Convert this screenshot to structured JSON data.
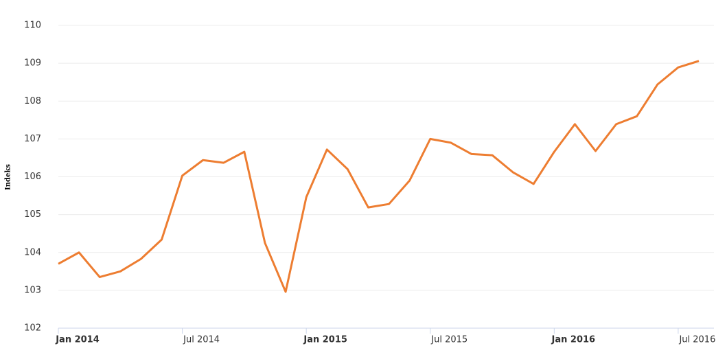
{
  "chart_data": {
    "type": "line",
    "y_label": "Indeks",
    "x": [
      "2014-01",
      "2014-02",
      "2014-03",
      "2014-04",
      "2014-05",
      "2014-06",
      "2014-07",
      "2014-08",
      "2014-09",
      "2014-10",
      "2014-11",
      "2014-12",
      "2015-01",
      "2015-02",
      "2015-03",
      "2015-04",
      "2015-05",
      "2015-06",
      "2015-07",
      "2015-08",
      "2015-09",
      "2015-10",
      "2015-11",
      "2015-12",
      "2016-01",
      "2016-02",
      "2016-03",
      "2016-04",
      "2016-05",
      "2016-06",
      "2016-07",
      "2016-08"
    ],
    "series": [
      {
        "name": "Indeks",
        "color": "#ed7d31",
        "values": [
          103.7,
          104.0,
          103.35,
          103.5,
          103.83,
          104.34,
          106.03,
          106.44,
          106.37,
          106.66,
          104.25,
          102.96,
          105.46,
          106.72,
          106.2,
          105.19,
          105.28,
          105.9,
          107.0,
          106.9,
          106.6,
          106.57,
          106.12,
          105.81,
          106.66,
          107.39,
          106.68,
          107.39,
          107.6,
          108.44,
          108.89,
          109.06
        ]
      }
    ],
    "xlim": [
      "2014-01",
      "2016-08"
    ],
    "xticks": [
      {
        "value": "2014-01",
        "label": "Jan 2014"
      },
      {
        "value": "2014-07",
        "label": "Jul 2014"
      },
      {
        "value": "2015-01",
        "label": "Jan 2015"
      },
      {
        "value": "2015-07",
        "label": "Jul 2015"
      },
      {
        "value": "2016-01",
        "label": "Jan 2016"
      },
      {
        "value": "2016-07",
        "label": "Jul 2016"
      }
    ],
    "ylim": [
      102,
      110
    ],
    "yticks": [
      102,
      103,
      104,
      105,
      106,
      107,
      108,
      109,
      110
    ],
    "grid": true
  }
}
